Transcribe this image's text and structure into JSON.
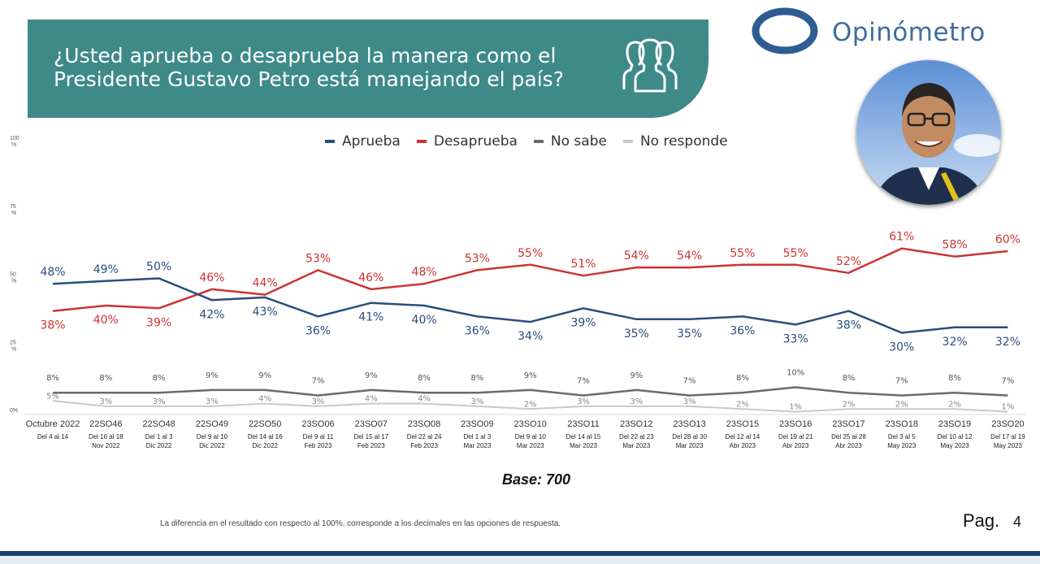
{
  "header": {
    "title": "¿Usted aprueba o desaprueba la manera como el Presidente Gustavo Petro está manejando el país?",
    "brand": "Opinómetro"
  },
  "colors": {
    "banner": "#3d8a88",
    "aprueba": "#2a4d7e",
    "desaprueba": "#cc3333",
    "no_sabe": "#6b6b6b",
    "no_responde": "#c9c9c9"
  },
  "chart_data": {
    "type": "line",
    "title": "¿Usted aprueba o desaprueba la manera como el Presidente Gustavo Petro está manejando el país?",
    "ylim": [
      0,
      100
    ],
    "y_ticks": [
      {
        "value": 0,
        "label": "0%"
      },
      {
        "value": 25,
        "label": "25 %"
      },
      {
        "value": 50,
        "label": "50 %"
      },
      {
        "value": 75,
        "label": "75 %"
      },
      {
        "value": 100,
        "label": "100 %"
      }
    ],
    "categories": [
      "Octubre 2022",
      "22SO46",
      "22SO48",
      "22SO49",
      "22SO50",
      "23SO06",
      "23SO07",
      "23SO08",
      "23SO09",
      "23SO10",
      "23SO11",
      "23SO12",
      "23SO13",
      "23SO15",
      "23SO16",
      "23SO17",
      "23SO18",
      "23SO19",
      "23SO20"
    ],
    "sublabels": [
      [
        "Del 4 al 14"
      ],
      [
        "Del 16 al 18",
        "Nov 2022"
      ],
      [
        "Del 1 al 3",
        "Dic 2022"
      ],
      [
        "Del 9 al 10",
        "Dic 2022"
      ],
      [
        "Del 14 al 16",
        "Dic 2022"
      ],
      [
        "Del 9 al 11",
        "Feb 2023"
      ],
      [
        "Del 15 al 17",
        "Feb 2023"
      ],
      [
        "Del 22 al 24",
        "Feb 2023"
      ],
      [
        "Del 1 al 3",
        "Mar 2023"
      ],
      [
        "Del 9 al 10",
        "Mar 2023"
      ],
      [
        "Del 14 al 15",
        "Mar 2023"
      ],
      [
        "Del 22 al 23",
        "Mar 2023"
      ],
      [
        "Del 28 al 30",
        "Mar 2023"
      ],
      [
        "Del 12 al 14",
        "Abr 2023"
      ],
      [
        "Del 19 al 21",
        "Abr 2023"
      ],
      [
        "Del 25 al 28",
        "Abr 2023"
      ],
      [
        "Del 3 al 5",
        "May 2023"
      ],
      [
        "Del 10 al 12",
        "May 2023"
      ],
      [
        "Del 17 al 19",
        "May 2023"
      ]
    ],
    "series": [
      {
        "name": "Aprueba",
        "key": "aprueba",
        "values": [
          48,
          49,
          50,
          42,
          43,
          36,
          41,
          40,
          36,
          34,
          39,
          35,
          35,
          36,
          33,
          38,
          30,
          32,
          32
        ]
      },
      {
        "name": "Desaprueba",
        "key": "desaprueba",
        "values": [
          38,
          40,
          39,
          46,
          44,
          53,
          46,
          48,
          53,
          55,
          51,
          54,
          54,
          55,
          55,
          52,
          61,
          58,
          60
        ]
      },
      {
        "name": "No sabe",
        "key": "no_sabe",
        "values": [
          8,
          8,
          8,
          9,
          9,
          7,
          9,
          8,
          8,
          9,
          7,
          9,
          7,
          8,
          10,
          8,
          7,
          8,
          7
        ]
      },
      {
        "name": "No responde",
        "key": "no_responde",
        "values": [
          5,
          3,
          3,
          3,
          4,
          3,
          4,
          4,
          3,
          2,
          3,
          3,
          3,
          2,
          1,
          2,
          2,
          2,
          1
        ]
      }
    ]
  },
  "legend": {
    "aprueba": "Aprueba",
    "desaprueba": "Desaprueba",
    "no_sabe": "No sabe",
    "no_responde": "No responde"
  },
  "footer": {
    "base": "Base: 700",
    "note": "La diferencia en el resultado con respecto al 100%, corresponde a los decimales en las opciones de respuesta.",
    "page_label": "Pag.",
    "page_number": "4"
  }
}
